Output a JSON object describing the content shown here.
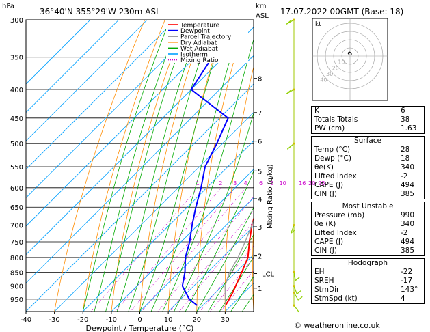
{
  "header": {
    "pressure_unit": "hPa",
    "location": "36°40'N  355°29'W  230m  ASL",
    "height_unit_top": "km",
    "height_unit_bottom": "ASL",
    "timestamp": "17.07.2022  00GMT  (Base: 18)"
  },
  "chart_data": {
    "type": "line",
    "title": "",
    "xlabel": "Dewpoint / Temperature (°C)",
    "ylabel": "hPa",
    "x_ticks": [
      -40,
      -30,
      -20,
      -10,
      0,
      10,
      20,
      30
    ],
    "y_ticks": [
      300,
      350,
      400,
      450,
      500,
      550,
      600,
      650,
      700,
      750,
      800,
      850,
      900,
      950
    ],
    "y_scale": "log",
    "ylim": [
      1000,
      300
    ],
    "xlim": [
      -40,
      40
    ],
    "km_axis": {
      "label": "km ASL",
      "ticks": [
        {
          "km": "1",
          "p": 908
        },
        {
          "km": "2",
          "p": 795
        },
        {
          "km": "3",
          "p": 705
        },
        {
          "km": "4",
          "p": 628
        },
        {
          "km": "5",
          "p": 560
        },
        {
          "km": "6",
          "p": 495
        },
        {
          "km": "7",
          "p": 440
        },
        {
          "km": "8",
          "p": 382
        }
      ],
      "lcl_label": "LCL",
      "lcl_p": 855
    },
    "mixing_ratio_axis": {
      "label": "Mixing Ratio (g/kg)",
      "values": [
        "1",
        "2",
        "3",
        "4",
        "6",
        "8",
        "10",
        "16",
        "20",
        "25"
      ]
    },
    "legend": {
      "position": "top-left",
      "entries": [
        {
          "name": "Temperature",
          "color": "#ff0000",
          "style": "solid"
        },
        {
          "name": "Dewpoint",
          "color": "#0000ff",
          "style": "solid"
        },
        {
          "name": "Parcel Trajectory",
          "color": "#a0a0a0",
          "style": "solid"
        },
        {
          "name": "Dry Adiabat",
          "color": "#ff8c00",
          "style": "solid"
        },
        {
          "name": "Wet Adiabat",
          "color": "#00aa00",
          "style": "solid"
        },
        {
          "name": "Isotherm",
          "color": "#00a0ff",
          "style": "solid"
        },
        {
          "name": "Mixing Ratio",
          "color": "#cc00cc",
          "style": "dotted"
        }
      ]
    },
    "series": [
      {
        "name": "Temperature",
        "color": "#ff0000",
        "points": [
          [
            975,
            28
          ],
          [
            925,
            26
          ],
          [
            850,
            22
          ],
          [
            800,
            19
          ],
          [
            750,
            14
          ],
          [
            700,
            9
          ],
          [
            650,
            4.5
          ],
          [
            600,
            -0.5
          ],
          [
            550,
            -6
          ],
          [
            500,
            -11.5
          ],
          [
            450,
            -18
          ],
          [
            400,
            -25
          ],
          [
            350,
            -34
          ],
          [
            300,
            -44
          ]
        ]
      },
      {
        "name": "Dewpoint",
        "color": "#0000ff",
        "points": [
          [
            975,
            18
          ],
          [
            950,
            13
          ],
          [
            900,
            6
          ],
          [
            850,
            2
          ],
          [
            800,
            -3
          ],
          [
            750,
            -7
          ],
          [
            700,
            -12
          ],
          [
            650,
            -17
          ],
          [
            600,
            -22
          ],
          [
            550,
            -28
          ],
          [
            500,
            -32
          ],
          [
            450,
            -37
          ],
          [
            400,
            -60
          ],
          [
            350,
            -64
          ],
          [
            300,
            -66
          ]
        ]
      },
      {
        "name": "Parcel Trajectory",
        "color": "#a0a0a0",
        "points": [
          [
            975,
            28
          ],
          [
            900,
            21
          ],
          [
            855,
            18
          ],
          [
            800,
            15.5
          ],
          [
            750,
            12.5
          ],
          [
            700,
            9
          ],
          [
            650,
            5
          ],
          [
            600,
            0.5
          ],
          [
            550,
            -4.5
          ],
          [
            500,
            -10
          ],
          [
            450,
            -16.5
          ],
          [
            400,
            -24
          ],
          [
            350,
            -33
          ],
          [
            300,
            -43
          ]
        ]
      }
    ],
    "wind_barbs": [
      {
        "p": 975,
        "dir": 143,
        "kt": 4
      },
      {
        "p": 925,
        "dir": 150,
        "kt": 5
      },
      {
        "p": 900,
        "dir": 160,
        "kt": 5
      },
      {
        "p": 850,
        "dir": 170,
        "kt": 5
      },
      {
        "p": 700,
        "dir": 200,
        "kt": 5
      },
      {
        "p": 500,
        "dir": 230,
        "kt": 10
      },
      {
        "p": 400,
        "dir": 240,
        "kt": 10
      },
      {
        "p": 300,
        "dir": 240,
        "kt": 10
      }
    ]
  },
  "hodograph": {
    "unit": "kt",
    "ring_labels": [
      "10",
      "20",
      "30",
      "40"
    ],
    "points": [
      [
        1,
        1
      ],
      [
        0.5,
        2
      ],
      [
        -0.5,
        2.5
      ],
      [
        -1.2,
        1.8
      ],
      [
        -0.5,
        0.8
      ]
    ]
  },
  "stats": {
    "top": [
      {
        "k": "K",
        "v": "6"
      },
      {
        "k": "Totals Totals",
        "v": "38"
      },
      {
        "k": "PW (cm)",
        "v": "1.63"
      }
    ],
    "surface": {
      "title": "Surface",
      "rows": [
        {
          "k": "Temp (°C)",
          "v": "28"
        },
        {
          "k": "Dewp (°C)",
          "v": "18"
        },
        {
          "k": "θe(K)",
          "v": "340"
        },
        {
          "k": "Lifted Index",
          "v": "-2"
        },
        {
          "k": "CAPE (J)",
          "v": "494"
        },
        {
          "k": "CIN (J)",
          "v": "385"
        }
      ]
    },
    "most_unstable": {
      "title": "Most Unstable",
      "rows": [
        {
          "k": "Pressure (mb)",
          "v": "990"
        },
        {
          "k": "θe (K)",
          "v": "340"
        },
        {
          "k": "Lifted Index",
          "v": "-2"
        },
        {
          "k": "CAPE (J)",
          "v": "494"
        },
        {
          "k": "CIN (J)",
          "v": "385"
        }
      ]
    },
    "hodograph_box": {
      "title": "Hodograph",
      "rows": [
        {
          "k": "EH",
          "v": "-22"
        },
        {
          "k": "SREH",
          "v": "-17"
        },
        {
          "k": "StmDir",
          "v": "143°"
        },
        {
          "k": "StmSpd (kt)",
          "v": "4"
        }
      ]
    }
  },
  "footer": "© weatheronline.co.uk"
}
